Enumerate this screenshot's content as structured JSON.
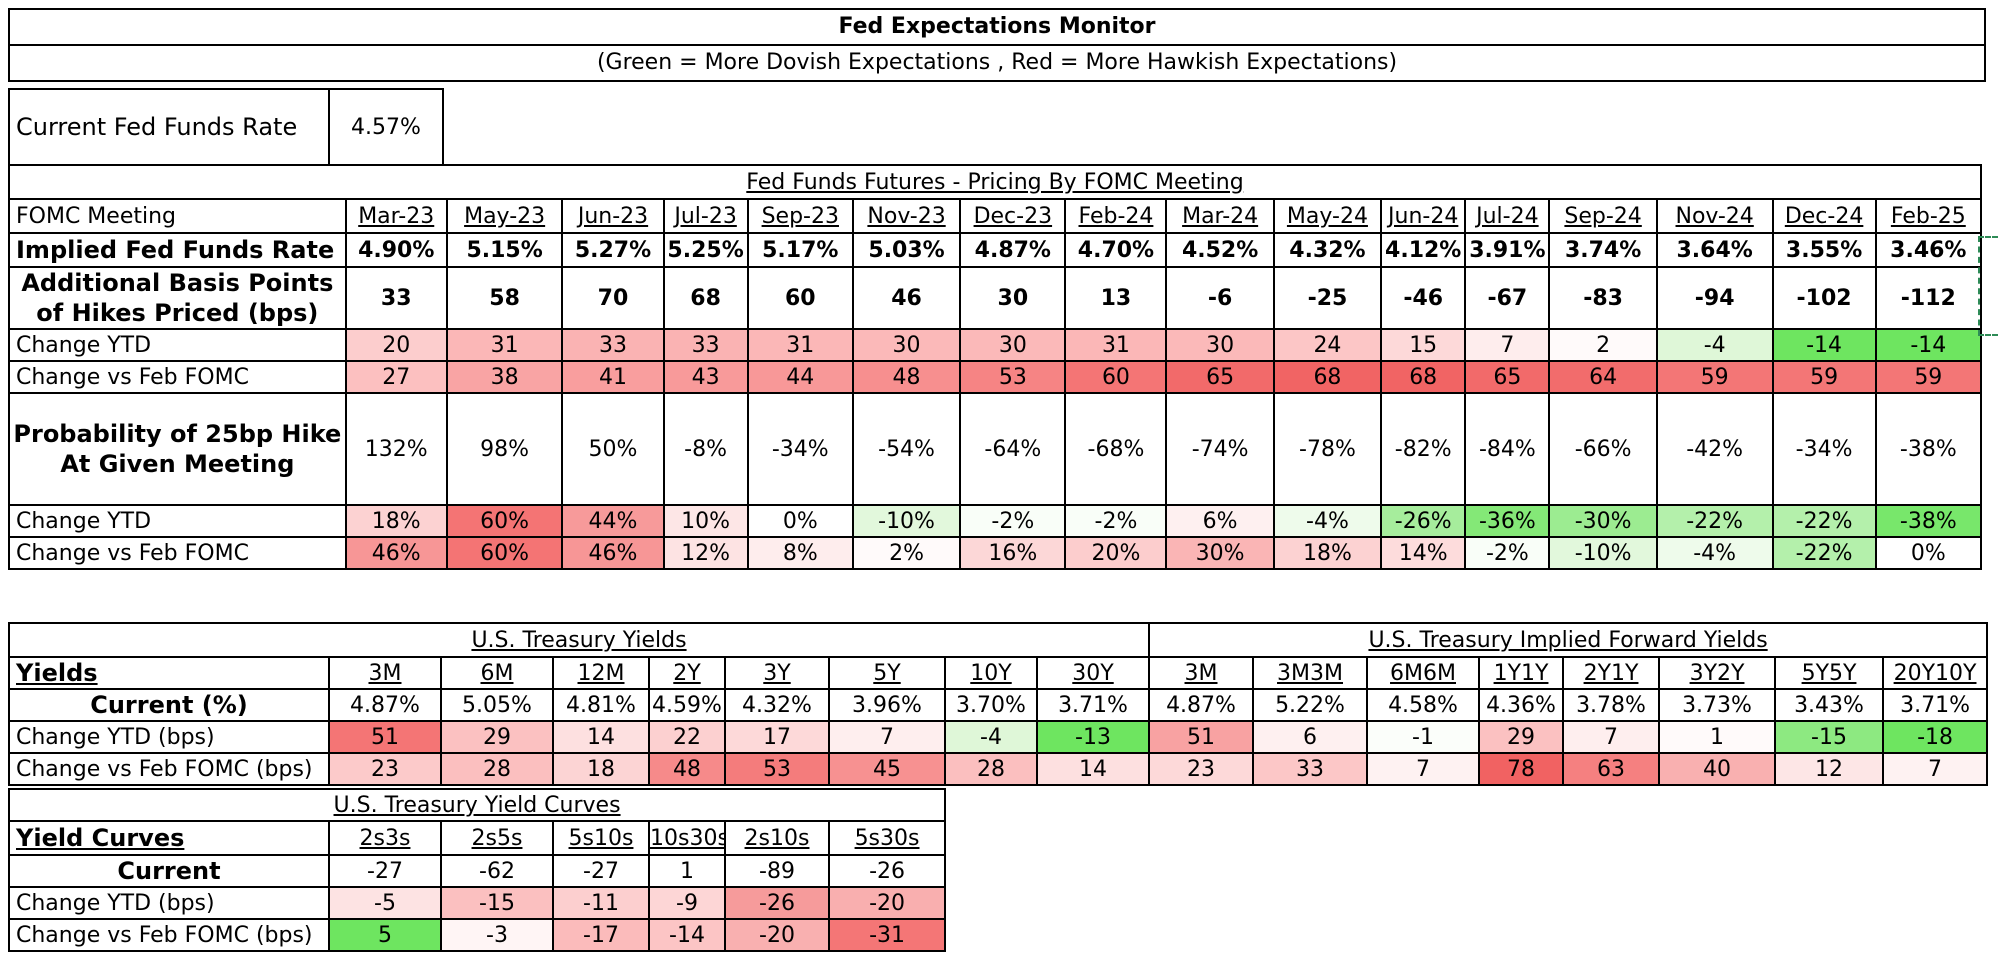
{
  "title": "Fed Expectations Monitor",
  "subtitle": "(Green = More Dovish Expectations , Red = More Hawkish Expectations)",
  "current_rate": {
    "label": "Current Fed Funds Rate",
    "value": "4.57%"
  },
  "futures": {
    "header": "Fed Funds Futures - Pricing By FOMC Meeting",
    "col_label": "FOMC Meeting",
    "meetings": [
      "Mar-23",
      "May-23",
      "Jun-23",
      "Jul-23",
      "Sep-23",
      "Nov-23",
      "Dec-23",
      "Feb-24",
      "Mar-24",
      "May-24",
      "Jun-24",
      "Jul-24",
      "Sep-24",
      "Nov-24",
      "Dec-24",
      "Feb-25"
    ],
    "rows": [
      {
        "label": "Implied Fed Funds Rate",
        "values": [
          "4.90%",
          "5.15%",
          "5.27%",
          "5.25%",
          "5.17%",
          "5.03%",
          "4.87%",
          "4.70%",
          "4.52%",
          "4.32%",
          "4.12%",
          "3.91%",
          "3.74%",
          "3.64%",
          "3.55%",
          "3.46%"
        ]
      },
      {
        "label": "Additional Basis Points of Hikes Priced (bps)",
        "values": [
          "33",
          "58",
          "70",
          "68",
          "60",
          "46",
          "30",
          "13",
          "-6",
          "-25",
          "-46",
          "-67",
          "-83",
          "-94",
          "-102",
          "-112"
        ]
      },
      {
        "label": "Change YTD",
        "values": [
          "20",
          "31",
          "33",
          "33",
          "31",
          "30",
          "30",
          "31",
          "30",
          "24",
          "15",
          "7",
          "2",
          "-4",
          "-14",
          "-14"
        ],
        "colors": [
          "#fccdcd",
          "#fbb7b7",
          "#fab3b3",
          "#fab3b3",
          "#fbb7b7",
          "#fbb9b9",
          "#fbb9b9",
          "#fbb7b7",
          "#fbb9b9",
          "#fcc6c6",
          "#fdd9d9",
          "#feeded",
          "#fffafa",
          "#dff7d8",
          "#6ee560",
          "#6ee560"
        ]
      },
      {
        "label": "Change vs Feb FOMC",
        "values": [
          "27",
          "38",
          "41",
          "43",
          "44",
          "48",
          "53",
          "60",
          "65",
          "68",
          "68",
          "65",
          "64",
          "59",
          "59",
          "59"
        ],
        "colors": [
          "#fcc0c0",
          "#f9a4a4",
          "#f99e9e",
          "#f89a9a",
          "#f89898",
          "#f78f8f",
          "#f68484",
          "#f47575",
          "#f26a6a",
          "#f16464",
          "#f16464",
          "#f26a6a",
          "#f26c6c",
          "#f37676",
          "#f37676",
          "#f37676"
        ]
      },
      {
        "label": "Probability of 25bp Hike At Given Meeting",
        "values": [
          "132%",
          "98%",
          "50%",
          "-8%",
          "-34%",
          "-54%",
          "-64%",
          "-68%",
          "-74%",
          "-78%",
          "-82%",
          "-84%",
          "-66%",
          "-42%",
          "-34%",
          "-38%"
        ]
      },
      {
        "label": "Change YTD",
        "values": [
          "18%",
          "60%",
          "44%",
          "10%",
          "0%",
          "-10%",
          "-2%",
          "-2%",
          "6%",
          "-4%",
          "-26%",
          "-36%",
          "-30%",
          "-22%",
          "-22%",
          "-38%"
        ],
        "colors": [
          "#fcd2d2",
          "#f47474",
          "#f79a9a",
          "#fde6e6",
          "#ffffff",
          "#e2f8dc",
          "#f9fef8",
          "#f9fef8",
          "#fef0f0",
          "#eefbeb",
          "#a6ed9c",
          "#84e877",
          "#9cec91",
          "#b4f0ab",
          "#b4f0ab",
          "#78e76b"
        ]
      },
      {
        "label": "Change vs Feb FOMC",
        "values": [
          "46%",
          "60%",
          "46%",
          "12%",
          "8%",
          "2%",
          "16%",
          "20%",
          "30%",
          "18%",
          "14%",
          "-2%",
          "-10%",
          "-4%",
          "-22%",
          "0%"
        ],
        "colors": [
          "#f79696",
          "#f47474",
          "#f79696",
          "#fde3e3",
          "#feeded",
          "#fffafa",
          "#fcd7d7",
          "#fccdcd",
          "#fab5b5",
          "#fcd2d2",
          "#fddcdc",
          "#f9fef8",
          "#e2f8dc",
          "#eefbeb",
          "#b4f0ab",
          "#ffffff"
        ]
      }
    ]
  },
  "yields": {
    "header": "U.S. Treasury Yields",
    "row_header": "Yields",
    "cols": [
      "3M",
      "6M",
      "12M",
      "2Y",
      "3Y",
      "5Y",
      "10Y",
      "30Y"
    ],
    "current_label": "Current (%)",
    "current": [
      "4.87%",
      "5.05%",
      "4.81%",
      "4.59%",
      "4.32%",
      "3.96%",
      "3.70%",
      "3.71%"
    ],
    "ytd_label": "Change YTD (bps)",
    "ytd": [
      "51",
      "29",
      "14",
      "22",
      "17",
      "7",
      "-4",
      "-13"
    ],
    "ytd_colors": [
      "#f47575",
      "#fbc1c1",
      "#fde0e0",
      "#fcd0d0",
      "#fdd9d9",
      "#feeeee",
      "#dff7d8",
      "#6ee560"
    ],
    "feb_label": "Change vs Feb FOMC (bps)",
    "feb": [
      "23",
      "28",
      "18",
      "48",
      "53",
      "45",
      "28",
      "14"
    ],
    "feb_colors": [
      "#fccaca",
      "#fbbfbf",
      "#fcd4d4",
      "#f68a8a",
      "#f47c7c",
      "#f79191",
      "#fbbfbf",
      "#fde0e0"
    ]
  },
  "forward": {
    "header": "U.S. Treasury Implied Forward Yields",
    "cols": [
      "3M",
      "3M3M",
      "6M6M",
      "1Y1Y",
      "2Y1Y",
      "3Y2Y",
      "5Y5Y",
      "20Y10Y"
    ],
    "current": [
      "4.87%",
      "5.22%",
      "4.58%",
      "4.36%",
      "3.78%",
      "3.73%",
      "3.43%",
      "3.71%"
    ],
    "ytd": [
      "51",
      "6",
      "-1",
      "29",
      "7",
      "1",
      "-15",
      "-18"
    ],
    "ytd_colors": [
      "#f8a2a2",
      "#fef0f0",
      "#fbfefa",
      "#fbc1c1",
      "#feeeee",
      "#fffafa",
      "#8de981",
      "#6ee560"
    ],
    "feb": [
      "23",
      "33",
      "7",
      "78",
      "63",
      "40",
      "12",
      "7"
    ],
    "feb_colors": [
      "#fdd9d9",
      "#fcc7c7",
      "#fef2f2",
      "#f16262",
      "#f58080",
      "#f9b0b0",
      "#fde6e6",
      "#fef2f2"
    ]
  },
  "curves": {
    "header": "U.S. Treasury Yield Curves",
    "row_header": "Yield Curves",
    "cols": [
      "2s3s",
      "2s5s",
      "5s10s",
      "10s30s",
      "2s10s",
      "5s30s"
    ],
    "current_label": "Current",
    "current": [
      "-27",
      "-62",
      "-27",
      "1",
      "-89",
      "-26"
    ],
    "ytd_label": "Change YTD (bps)",
    "ytd": [
      "-5",
      "-15",
      "-11",
      "-9",
      "-26",
      "-20"
    ],
    "ytd_colors": [
      "#fde3e3",
      "#fbc0c0",
      "#fccfcf",
      "#fdd6d6",
      "#f69b9b",
      "#f9afaf"
    ],
    "feb_label": "Change vs Feb FOMC (bps)",
    "feb": [
      "5",
      "-3",
      "-17",
      "-14",
      "-20",
      "-31"
    ],
    "feb_colors": [
      "#6ee560",
      "#fff5f5",
      "#fbbbbb",
      "#fcc5c5",
      "#f9b0b0",
      "#f47676"
    ]
  }
}
